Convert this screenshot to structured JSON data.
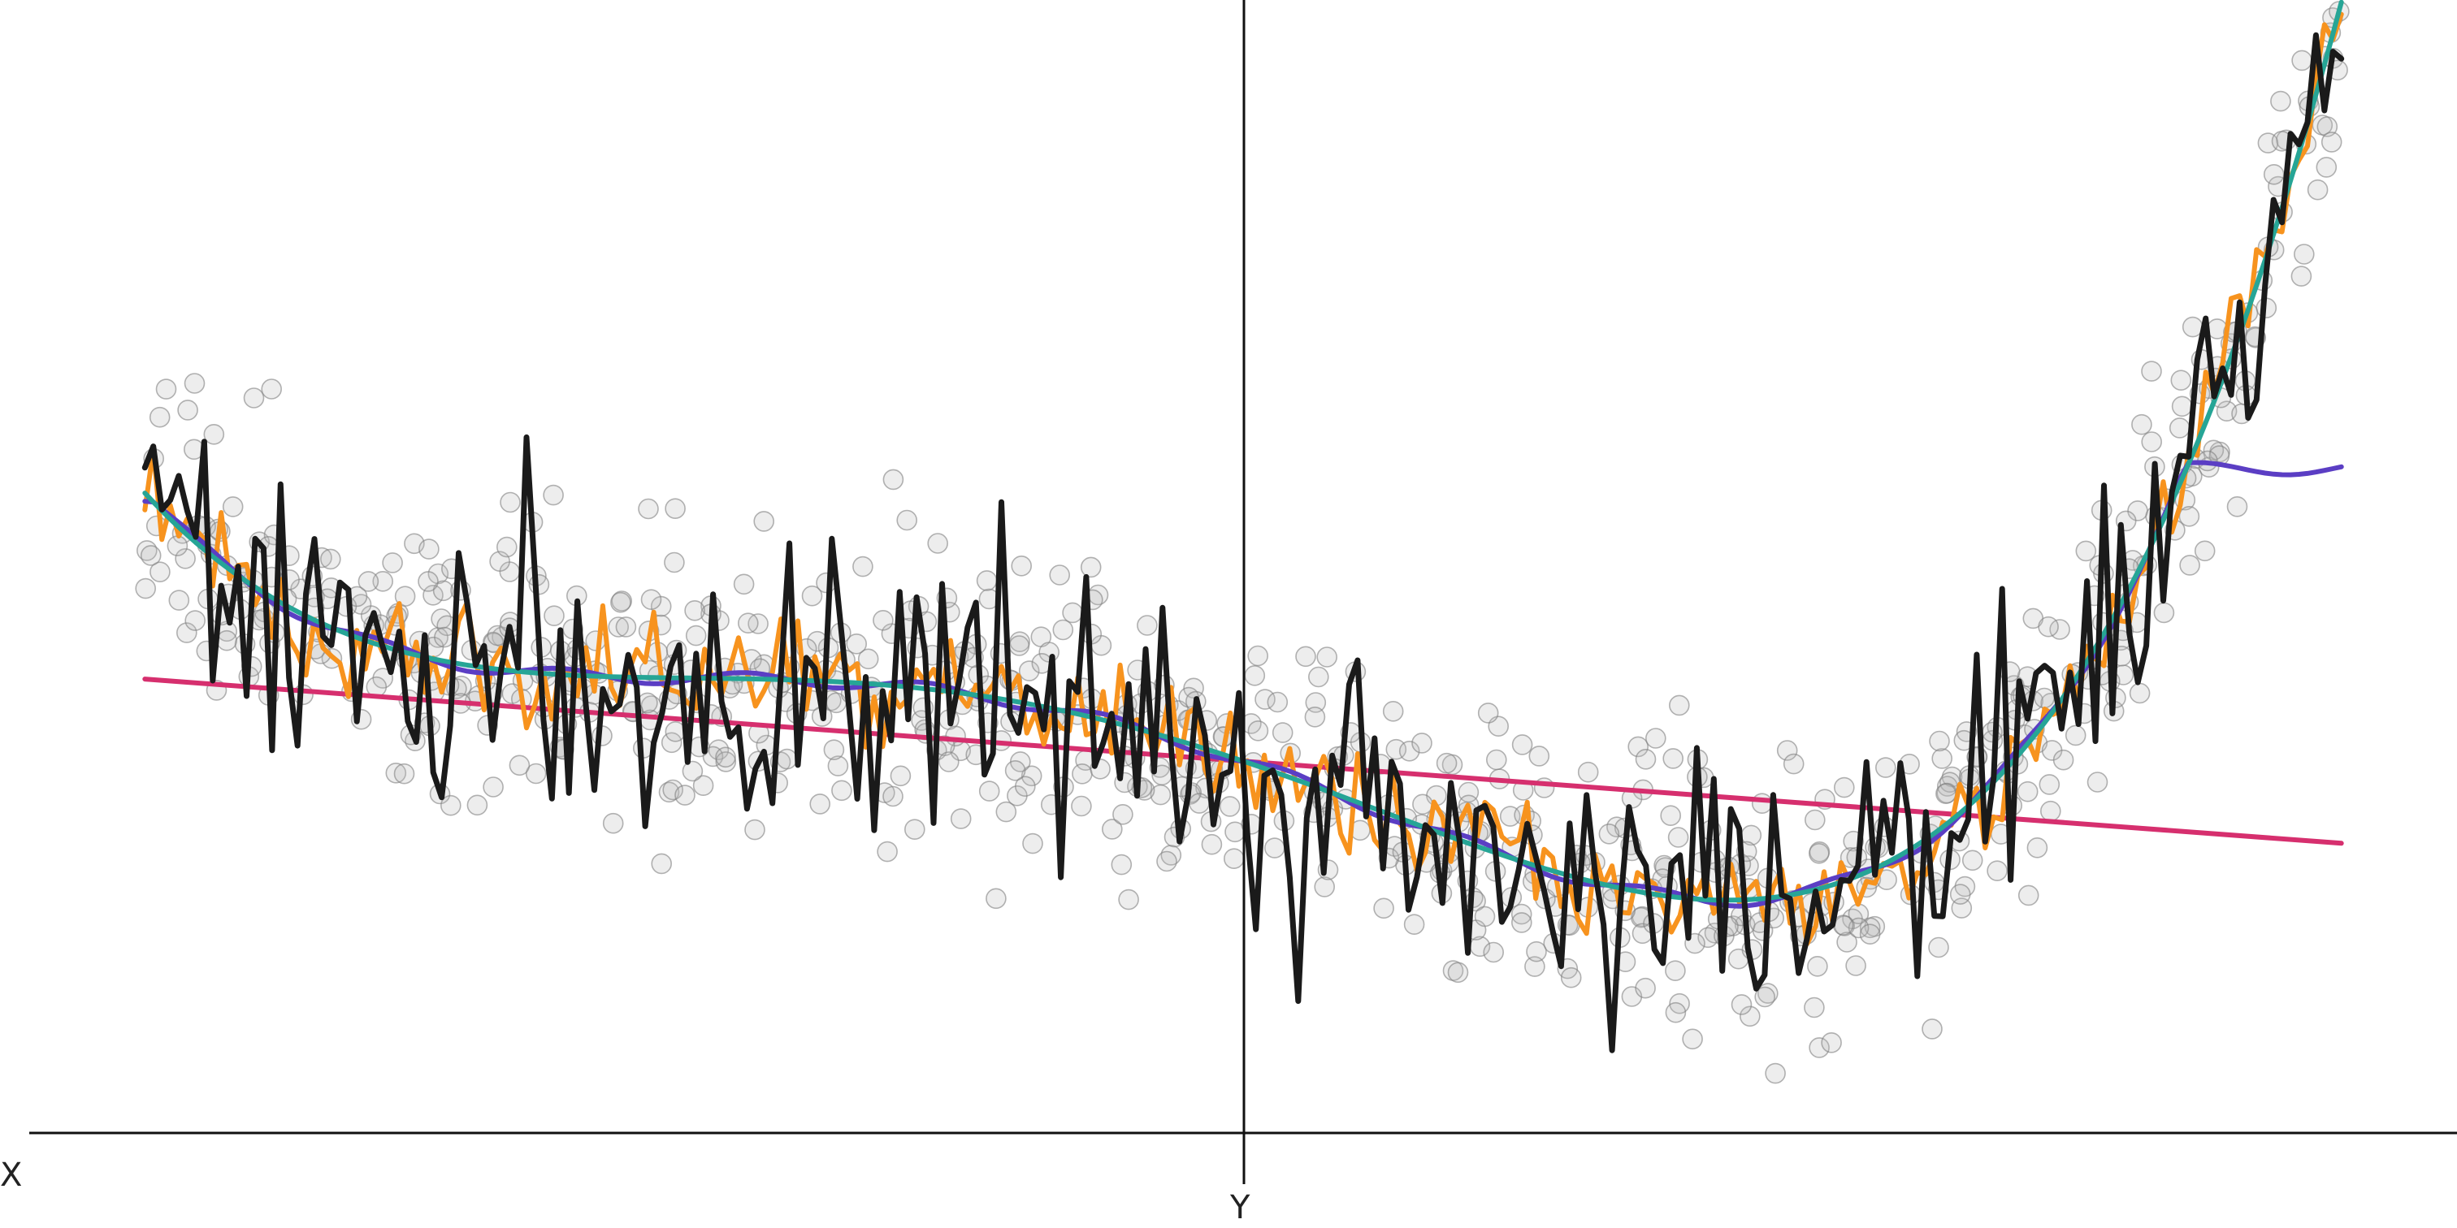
{
  "chart_data": {
    "type": "scatter",
    "title": "",
    "xlabel": "X",
    "ylabel": "Y",
    "xlim": [
      -1.05,
      1.05
    ],
    "ylim": [
      -0.05,
      1.05
    ],
    "grid": false,
    "legend": "none",
    "scatter": {
      "color": "#888888",
      "n": 800,
      "seed": 7
    },
    "series": [
      {
        "key": "linear",
        "color": "#D62F6E",
        "kind": "line",
        "x": [
          -0.95,
          0.95
        ],
        "y": [
          0.42,
          0.26
        ]
      },
      {
        "key": "poly",
        "color": "#26A596",
        "kind": "poly",
        "coef": [
          0.34,
          -0.38,
          -0.33,
          0.7,
          0.98,
          0.0,
          0.0
        ]
      },
      {
        "key": "smooth",
        "color": "#5B3EC4",
        "kind": "clip",
        "clip": [
          0.595,
          0.625
        ]
      },
      {
        "key": "medium",
        "color": "#F7931E",
        "kind": "noisy",
        "noise": 0.028
      },
      {
        "key": "rough",
        "color": "#1A1A1A",
        "kind": "noisy",
        "noise": 0.075
      }
    ]
  },
  "colors": {
    "axis": "#111111",
    "point_fill": "#B8B8B8",
    "point_stroke": "#808080"
  }
}
